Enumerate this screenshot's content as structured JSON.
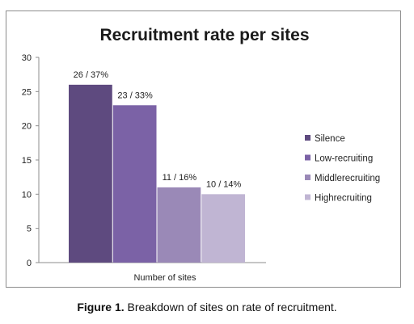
{
  "chart_data": {
    "type": "bar",
    "title": "Recruitment rate  per sites",
    "xlabel": "Number of sites",
    "ylabel": "",
    "ylim": [
      0,
      30
    ],
    "yticks": [
      0,
      5,
      10,
      15,
      20,
      25,
      30
    ],
    "grid": false,
    "legend_position": "right",
    "series": [
      {
        "name": "Silence",
        "value": 26,
        "data_label": "26 / 37%",
        "color": "#5e4a7f"
      },
      {
        "name": "Low-recruiting",
        "value": 23,
        "data_label": "23 / 33%",
        "color": "#7b62a6"
      },
      {
        "name": "Middlerecruiting",
        "value": 11,
        "data_label": "11 / 16%",
        "color": "#9a89b7"
      },
      {
        "name": "Highrecruiting",
        "value": 10,
        "data_label": "10 / 14%",
        "color": "#c0b5d3"
      }
    ]
  },
  "caption": {
    "label": "Figure 1.",
    "text": " Breakdown of sites on rate of recruitment."
  }
}
